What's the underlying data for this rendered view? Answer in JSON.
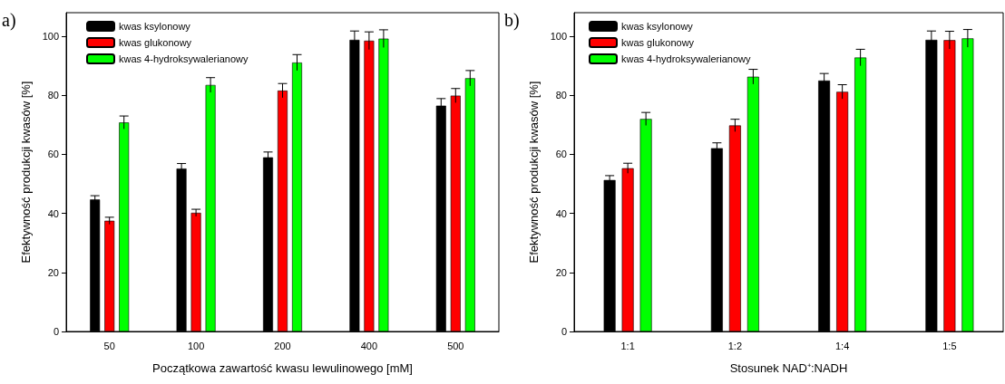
{
  "chart_data": [
    {
      "type": "bar",
      "annotations": [
        "a)"
      ],
      "xlabel": "Początkowa zawartość kwasu lewulinowego [mM]",
      "ylabel": "Efektywność produkcji kwasów [%]",
      "categories": [
        "50",
        "100",
        "200",
        "400",
        "500"
      ],
      "series": [
        {
          "name": "kwas ksylonowy",
          "color": "#000000",
          "values": [
            44.7,
            55.2,
            59.0,
            98.8,
            76.5
          ],
          "errors": [
            1.3,
            1.7,
            1.8,
            3.0,
            2.4
          ]
        },
        {
          "name": "kwas glukonowy",
          "color": "#ff0000",
          "values": [
            37.5,
            40.2,
            81.6,
            98.5,
            79.9
          ],
          "errors": [
            1.2,
            1.2,
            2.4,
            3.0,
            2.4
          ]
        },
        {
          "name": "kwas 4-hydroksywalerianowy",
          "color": "#00ff00",
          "values": [
            70.8,
            83.5,
            91.1,
            99.2,
            85.8
          ],
          "errors": [
            2.2,
            2.5,
            2.7,
            3.0,
            2.6
          ]
        }
      ],
      "ylim": [
        0,
        108
      ],
      "yticks": [
        0,
        20,
        40,
        60,
        80,
        100
      ],
      "grid": false,
      "legend": "top left"
    },
    {
      "type": "bar",
      "annotations": [
        "b)"
      ],
      "xlabel": "Stosunek NAD⁺:NADH",
      "ylabel": "Efektywność produkcji kwasów [%]",
      "categories": [
        "1:1",
        "1:2",
        "1:4",
        "1:5"
      ],
      "series": [
        {
          "name": "kwas ksylonowy",
          "color": "#000000",
          "values": [
            51.3,
            62.1,
            85.0,
            98.8
          ],
          "errors": [
            1.5,
            1.8,
            2.4,
            3.0
          ]
        },
        {
          "name": "kwas glukonowy",
          "color": "#ff0000",
          "values": [
            55.3,
            69.8,
            81.2,
            98.7
          ],
          "errors": [
            1.7,
            2.1,
            2.4,
            3.0
          ]
        },
        {
          "name": "kwas 4-hydroksywalerianowy",
          "color": "#00ff00",
          "values": [
            72.0,
            86.3,
            92.8,
            99.3
          ],
          "errors": [
            2.2,
            2.5,
            2.8,
            3.0
          ]
        }
      ],
      "ylim": [
        0,
        108
      ],
      "yticks": [
        0,
        20,
        40,
        60,
        80,
        100
      ],
      "grid": false,
      "legend": "top left"
    }
  ]
}
